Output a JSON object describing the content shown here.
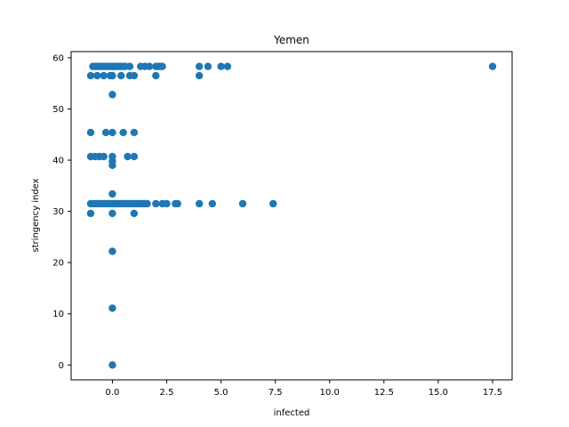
{
  "chart_data": {
    "type": "scatter",
    "title": "Yemen",
    "xlabel": "infected",
    "ylabel": "stringency index",
    "xlim": [
      -1.9,
      18.4
    ],
    "ylim": [
      -2.9,
      61.2
    ],
    "xticks": [
      0.0,
      2.5,
      5.0,
      7.5,
      10.0,
      12.5,
      15.0,
      17.5
    ],
    "xtick_labels": [
      "0.0",
      "2.5",
      "5.0",
      "7.5",
      "10.0",
      "12.5",
      "15.0",
      "17.5"
    ],
    "yticks": [
      0,
      10,
      20,
      30,
      40,
      50,
      60
    ],
    "ytick_labels": [
      "0",
      "10",
      "20",
      "30",
      "40",
      "50",
      "60"
    ],
    "grid": false,
    "marker_color": "#1f77b4",
    "points": [
      [
        -0.9,
        58.3
      ],
      [
        -0.8,
        58.3
      ],
      [
        -0.7,
        58.3
      ],
      [
        -0.6,
        58.3
      ],
      [
        -0.5,
        58.3
      ],
      [
        -0.4,
        58.3
      ],
      [
        -0.3,
        58.3
      ],
      [
        -0.2,
        58.3
      ],
      [
        -0.1,
        58.3
      ],
      [
        0.0,
        58.3
      ],
      [
        0.1,
        58.3
      ],
      [
        0.2,
        58.3
      ],
      [
        0.3,
        58.3
      ],
      [
        0.4,
        58.3
      ],
      [
        0.5,
        58.3
      ],
      [
        0.6,
        58.3
      ],
      [
        0.8,
        58.3
      ],
      [
        1.3,
        58.3
      ],
      [
        1.5,
        58.3
      ],
      [
        1.7,
        58.3
      ],
      [
        2.0,
        58.3
      ],
      [
        2.1,
        58.3
      ],
      [
        2.2,
        58.3
      ],
      [
        2.3,
        58.3
      ],
      [
        4.0,
        58.3
      ],
      [
        4.4,
        58.3
      ],
      [
        5.0,
        58.3
      ],
      [
        5.3,
        58.3
      ],
      [
        17.5,
        58.3
      ],
      [
        -1.0,
        56.5
      ],
      [
        -0.7,
        56.5
      ],
      [
        -0.4,
        56.5
      ],
      [
        -0.1,
        56.5
      ],
      [
        0.0,
        56.5
      ],
      [
        0.4,
        56.5
      ],
      [
        0.8,
        56.5
      ],
      [
        1.0,
        56.5
      ],
      [
        2.0,
        56.5
      ],
      [
        4.0,
        56.5
      ],
      [
        0.0,
        52.8
      ],
      [
        -1.0,
        45.4
      ],
      [
        -0.3,
        45.4
      ],
      [
        0.0,
        45.4
      ],
      [
        0.5,
        45.4
      ],
      [
        1.0,
        45.4
      ],
      [
        -1.0,
        40.7
      ],
      [
        -0.8,
        40.7
      ],
      [
        -0.6,
        40.7
      ],
      [
        -0.4,
        40.7
      ],
      [
        0.0,
        40.7
      ],
      [
        0.7,
        40.7
      ],
      [
        1.0,
        40.7
      ],
      [
        0.0,
        39.8
      ],
      [
        0.0,
        39.0
      ],
      [
        0.0,
        33.4
      ],
      [
        -1.0,
        31.5
      ],
      [
        -0.9,
        31.5
      ],
      [
        -0.8,
        31.5
      ],
      [
        -0.7,
        31.5
      ],
      [
        -0.6,
        31.5
      ],
      [
        -0.5,
        31.5
      ],
      [
        -0.4,
        31.5
      ],
      [
        -0.3,
        31.5
      ],
      [
        -0.2,
        31.5
      ],
      [
        -0.1,
        31.5
      ],
      [
        0.0,
        31.5
      ],
      [
        0.1,
        31.5
      ],
      [
        0.2,
        31.5
      ],
      [
        0.3,
        31.5
      ],
      [
        0.4,
        31.5
      ],
      [
        0.5,
        31.5
      ],
      [
        0.6,
        31.5
      ],
      [
        0.7,
        31.5
      ],
      [
        0.8,
        31.5
      ],
      [
        0.9,
        31.5
      ],
      [
        1.0,
        31.5
      ],
      [
        1.1,
        31.5
      ],
      [
        1.2,
        31.5
      ],
      [
        1.3,
        31.5
      ],
      [
        1.4,
        31.5
      ],
      [
        1.5,
        31.5
      ],
      [
        1.6,
        31.5
      ],
      [
        2.0,
        31.5
      ],
      [
        2.3,
        31.5
      ],
      [
        2.5,
        31.5
      ],
      [
        2.9,
        31.5
      ],
      [
        3.0,
        31.5
      ],
      [
        4.0,
        31.5
      ],
      [
        4.6,
        31.5
      ],
      [
        6.0,
        31.5
      ],
      [
        7.4,
        31.5
      ],
      [
        -1.0,
        29.6
      ],
      [
        0.0,
        29.6
      ],
      [
        1.0,
        29.6
      ],
      [
        0.0,
        22.2
      ],
      [
        0.0,
        11.1
      ],
      [
        0.0,
        0.0
      ]
    ]
  }
}
